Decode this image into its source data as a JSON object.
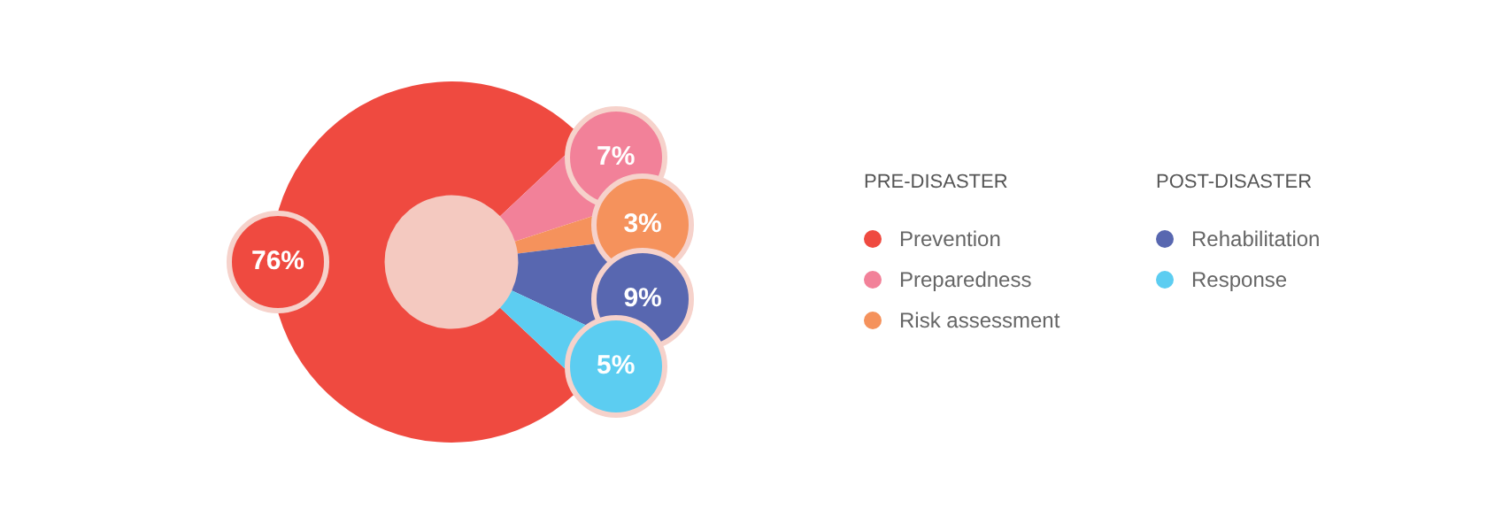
{
  "chart_data": {
    "type": "donut",
    "categories": [
      "Prevention",
      "Preparedness",
      "Risk assessment",
      "Rehabilitation",
      "Response"
    ],
    "values": [
      76,
      7,
      3,
      9,
      5
    ],
    "colors": [
      "#ef4a40",
      "#f28199",
      "#f5925c",
      "#5867b0",
      "#5ccdf1"
    ],
    "value_labels": [
      "76%",
      "7%",
      "3%",
      "9%",
      "5%"
    ],
    "annotations": [
      "PRE-DISASTER",
      "POST-DISASTER"
    ],
    "legend": "right"
  }
}
